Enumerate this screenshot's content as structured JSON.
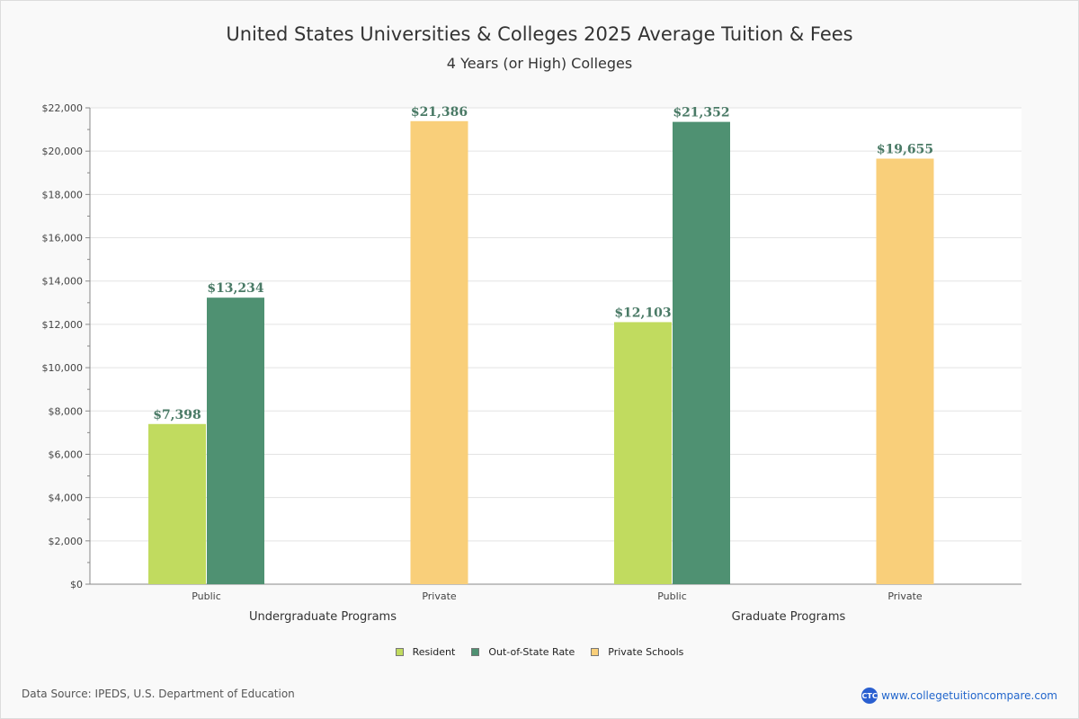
{
  "chart_data": {
    "type": "bar",
    "title": "United States Universities & Colleges 2025 Average Tuition & Fees",
    "subtitle": "4 Years (or High)  Colleges",
    "ylim": [
      0,
      22000
    ],
    "yticks": [
      "$0",
      "$2,000",
      "$4,000",
      "$6,000",
      "$8,000",
      "$10,000",
      "$12,000",
      "$14,000",
      "$16,000",
      "$18,000",
      "$20,000",
      "$22,000"
    ],
    "groups": [
      {
        "label": "Undergraduate Programs",
        "subcategories": [
          {
            "label": "Public",
            "bars": [
              {
                "series": "Resident",
                "value": 7398,
                "label": "$7,398"
              },
              {
                "series": "Out-of-State Rate",
                "value": 13234,
                "label": "$13,234"
              }
            ]
          },
          {
            "label": "Private",
            "bars": [
              {
                "series": "Private Schools",
                "value": 21386,
                "label": "$21,386"
              }
            ]
          }
        ]
      },
      {
        "label": "Graduate Programs",
        "subcategories": [
          {
            "label": "Public",
            "bars": [
              {
                "series": "Resident",
                "value": 12103,
                "label": "$12,103"
              },
              {
                "series": "Out-of-State Rate",
                "value": 21352,
                "label": "$21,352"
              }
            ]
          },
          {
            "label": "Private",
            "bars": [
              {
                "series": "Private Schools",
                "value": 19655,
                "label": "$19,655"
              }
            ]
          }
        ]
      }
    ],
    "legend": [
      {
        "name": "Resident",
        "color": "#c1db5f"
      },
      {
        "name": "Out-of-State Rate",
        "color": "#4f9172"
      },
      {
        "name": "Private Schools",
        "color": "#f9cf7a"
      }
    ],
    "label_color": "#4a7a66"
  },
  "footer": {
    "source": "Data Source: IPEDS, U.S. Department of Education",
    "site": "www.collegetuitioncompare.com",
    "logo": "CTC"
  }
}
